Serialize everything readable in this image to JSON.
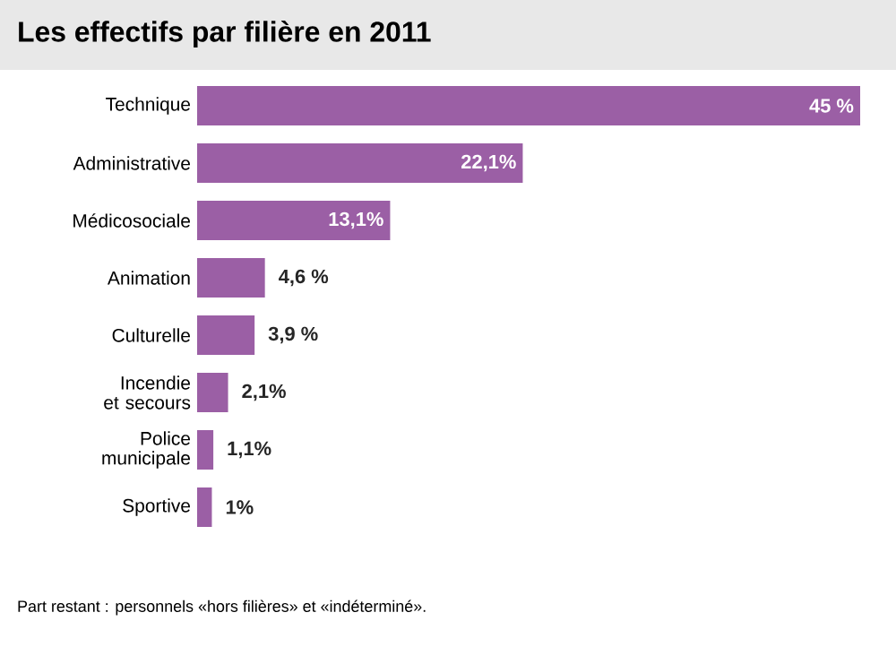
{
  "chart_data": {
    "type": "bar",
    "orientation": "horizontal",
    "title": "Les effectifs par filière en 2011",
    "categories": [
      "Technique",
      "Administrative",
      "Médicosociale",
      "Animation",
      "Culturelle",
      "Incendie et secours",
      "Police municipale",
      "Sportive"
    ],
    "values": [
      45,
      22.1,
      13.1,
      4.6,
      3.9,
      2.1,
      1.1,
      1
    ],
    "value_labels": [
      "45 %",
      "22,1%",
      "13,1%",
      "4,6 %",
      "3,9 %",
      "2,1%",
      "1,1%",
      "1%"
    ],
    "color": "#9b5fa5",
    "annotations": [
      "Part restant : personnels «hors filières» et «indéterminé»."
    ]
  }
}
